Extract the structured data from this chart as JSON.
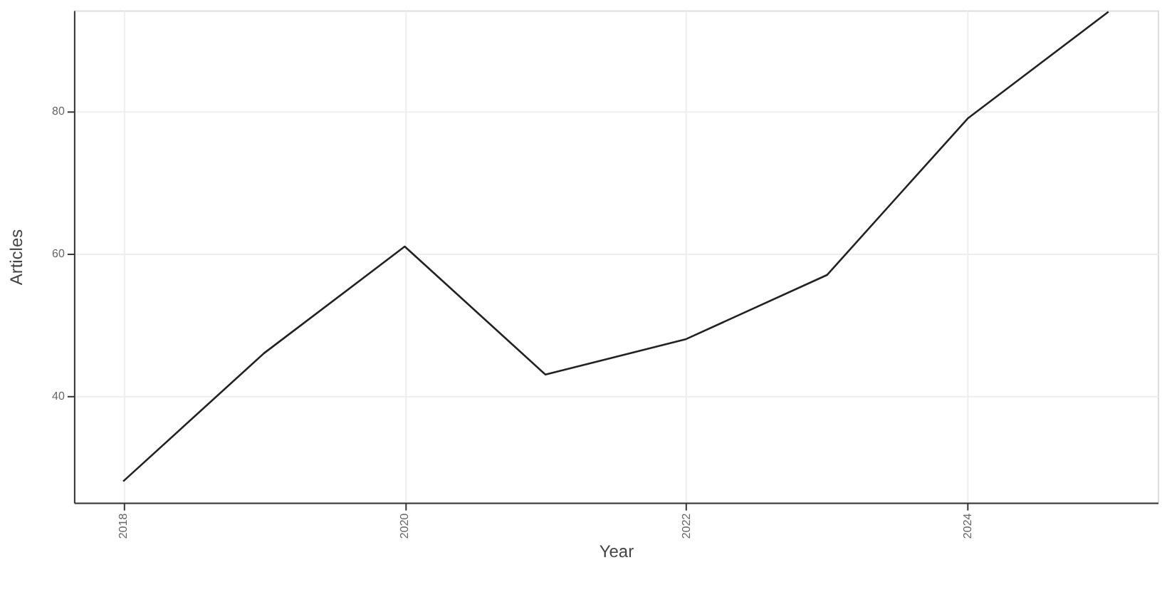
{
  "chart_data": {
    "type": "line",
    "xlabel": "Year",
    "ylabel": "Articles",
    "x": [
      2018,
      2019,
      2020,
      2021,
      2022,
      2023,
      2024,
      2025
    ],
    "values": [
      28,
      46,
      61,
      43,
      48,
      57,
      79,
      94
    ],
    "color": "#222222",
    "xlim": [
      2017.65,
      2025.35
    ],
    "xticks": [
      2018,
      2020,
      2022,
      2024
    ],
    "ylim": [
      25,
      94.2
    ],
    "yticks": [
      40,
      60,
      80
    ],
    "grid": true,
    "marker": "none",
    "line_style": "solid"
  }
}
